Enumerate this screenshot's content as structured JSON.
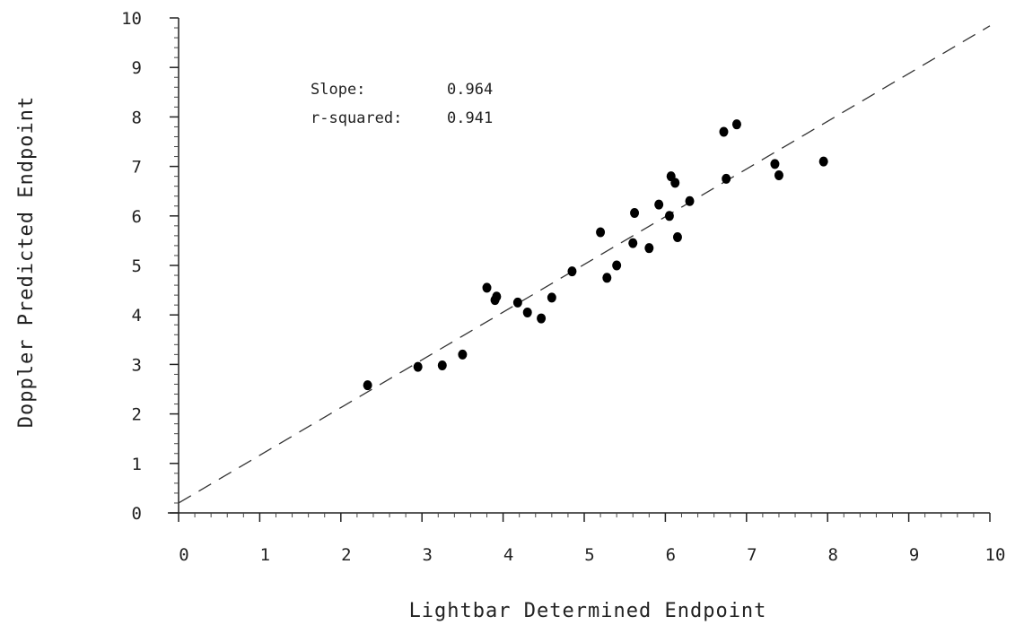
{
  "chart_data": {
    "type": "scatter",
    "xlabel": "Lightbar Determined Endpoint",
    "ylabel": "Doppler Predicted Endpoint",
    "xlim": [
      0,
      10
    ],
    "ylim": [
      0,
      10
    ],
    "x_ticks": [
      "0",
      "1",
      "2",
      "3",
      "4",
      "5",
      "6",
      "7",
      "8",
      "9",
      "10"
    ],
    "y_ticks": [
      "0",
      "1",
      "2",
      "3",
      "4",
      "5",
      "6",
      "7",
      "8",
      "9",
      "10"
    ],
    "grid": false,
    "annotations": {
      "slope_label": "Slope:",
      "slope_value": "0.964",
      "r2_label": "r-squared:",
      "r2_value": "0.941"
    },
    "fit_line": {
      "x": [
        0,
        10
      ],
      "y": [
        0.2,
        9.84
      ],
      "style": "dashed"
    },
    "points": [
      {
        "x": 2.33,
        "y": 2.58
      },
      {
        "x": 2.95,
        "y": 2.95
      },
      {
        "x": 3.25,
        "y": 2.98
      },
      {
        "x": 3.5,
        "y": 3.2
      },
      {
        "x": 3.8,
        "y": 4.55
      },
      {
        "x": 3.9,
        "y": 4.3
      },
      {
        "x": 3.92,
        "y": 4.37
      },
      {
        "x": 4.18,
        "y": 4.25
      },
      {
        "x": 4.3,
        "y": 4.05
      },
      {
        "x": 4.47,
        "y": 3.93
      },
      {
        "x": 4.6,
        "y": 4.35
      },
      {
        "x": 4.85,
        "y": 4.88
      },
      {
        "x": 5.2,
        "y": 5.67
      },
      {
        "x": 5.28,
        "y": 4.75
      },
      {
        "x": 5.4,
        "y": 5.0
      },
      {
        "x": 5.6,
        "y": 5.45
      },
      {
        "x": 5.62,
        "y": 6.06
      },
      {
        "x": 5.8,
        "y": 5.35
      },
      {
        "x": 5.92,
        "y": 6.23
      },
      {
        "x": 6.05,
        "y": 6.0
      },
      {
        "x": 6.07,
        "y": 6.8
      },
      {
        "x": 6.12,
        "y": 6.67
      },
      {
        "x": 6.15,
        "y": 5.57
      },
      {
        "x": 6.3,
        "y": 6.3
      },
      {
        "x": 6.72,
        "y": 7.7
      },
      {
        "x": 6.75,
        "y": 6.75
      },
      {
        "x": 6.88,
        "y": 7.85
      },
      {
        "x": 7.35,
        "y": 7.05
      },
      {
        "x": 7.4,
        "y": 6.82
      },
      {
        "x": 7.95,
        "y": 7.1
      }
    ]
  }
}
